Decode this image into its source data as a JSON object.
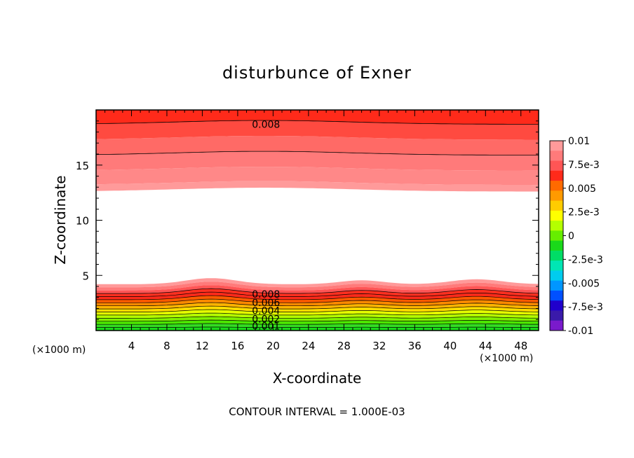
{
  "chart_data": {
    "type": "contour",
    "title": "disturbunce of Exner",
    "xlabel": "X-coordinate",
    "ylabel": "Z-coordinate",
    "x_unit_left": "(×1000 m)",
    "x_unit_right": "(×1000 m)",
    "xlim": [
      0,
      50
    ],
    "ylim": [
      0,
      20
    ],
    "x_ticks": [
      "4",
      "8",
      "12",
      "16",
      "20",
      "24",
      "28",
      "32",
      "36",
      "40",
      "44",
      "48"
    ],
    "y_ticks": [
      "5",
      "10",
      "15"
    ],
    "contour_labels": [
      "0.008",
      "0.008",
      "0.006",
      "0.004",
      "0.002",
      "0.001"
    ],
    "colorbar": {
      "labels": [
        "0.01",
        "7.5e-3",
        "0.005",
        "2.5e-3",
        "0",
        "-2.5e-3",
        "-0.005",
        "-7.5e-3",
        "-0.01"
      ],
      "colors": [
        "#ff9a9a",
        "#ff7a7a",
        "#ff5555",
        "#ff2a1a",
        "#ff6a00",
        "#ff9a00",
        "#ffcc00",
        "#ffff00",
        "#b4ff00",
        "#66ee00",
        "#1ad91a",
        "#00dd66",
        "#00e6b4",
        "#00ccee",
        "#0096ff",
        "#0050ff",
        "#2000cc",
        "#3a1aaa",
        "#7a1acc"
      ]
    },
    "footer": "CONTOUR INTERVAL = 1.000E-03",
    "grid": false
  }
}
